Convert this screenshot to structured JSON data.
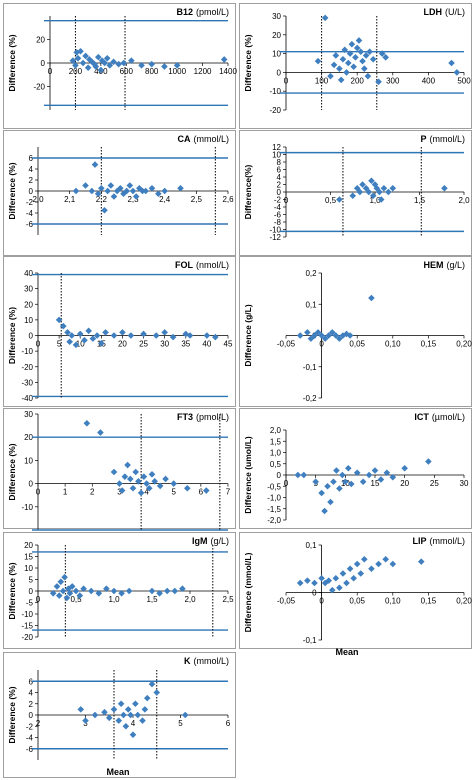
{
  "colors": {
    "marker": "#3F7FBF",
    "limit_line": "#2E75B6",
    "axis": "#000000",
    "frame": "#888888"
  },
  "xaxis_label": "Mean",
  "chart_data": [
    {
      "id": "b12",
      "type": "scatter",
      "title": "B12",
      "unit": "(pmol/L)",
      "ylabel": "Difference (%)",
      "xlim": [
        0,
        1400
      ],
      "ylim": [
        -40,
        40
      ],
      "xticks": [
        0,
        200,
        400,
        600,
        800,
        1000,
        1200,
        1400
      ],
      "yticks": [
        -20,
        0,
        20
      ],
      "hlines": [
        36,
        -36
      ],
      "vlines": [
        200,
        590
      ],
      "points": [
        [
          180,
          2
        ],
        [
          200,
          -2
        ],
        [
          210,
          9
        ],
        [
          220,
          4
        ],
        [
          240,
          10
        ],
        [
          260,
          0
        ],
        [
          280,
          6
        ],
        [
          300,
          -4
        ],
        [
          310,
          3
        ],
        [
          330,
          1
        ],
        [
          350,
          -1
        ],
        [
          360,
          -3
        ],
        [
          380,
          5
        ],
        [
          400,
          -6
        ],
        [
          410,
          2
        ],
        [
          430,
          0
        ],
        [
          450,
          4
        ],
        [
          470,
          -2
        ],
        [
          500,
          1
        ],
        [
          540,
          -1
        ],
        [
          580,
          0
        ],
        [
          640,
          2
        ],
        [
          720,
          -2
        ],
        [
          800,
          -1
        ],
        [
          900,
          -3
        ],
        [
          1000,
          -2
        ],
        [
          1370,
          3
        ]
      ]
    },
    {
      "id": "ldh",
      "type": "scatter",
      "title": "LDH",
      "unit": "(U/L)",
      "ylabel": "Difference (%)",
      "xlim": [
        0,
        500
      ],
      "ylim": [
        -20,
        30
      ],
      "xticks": [
        0,
        100,
        200,
        300,
        400,
        500
      ],
      "yticks": [
        -20,
        -10,
        0,
        10,
        20,
        30
      ],
      "hlines": [
        11,
        -11
      ],
      "vlines": [
        100,
        255
      ],
      "points": [
        [
          90,
          6
        ],
        [
          110,
          29
        ],
        [
          125,
          -2
        ],
        [
          135,
          4
        ],
        [
          140,
          9
        ],
        [
          150,
          2
        ],
        [
          155,
          -4
        ],
        [
          160,
          7
        ],
        [
          165,
          12
        ],
        [
          170,
          0
        ],
        [
          175,
          5
        ],
        [
          180,
          10
        ],
        [
          185,
          15
        ],
        [
          190,
          3
        ],
        [
          195,
          8
        ],
        [
          200,
          13
        ],
        [
          205,
          17
        ],
        [
          210,
          11
        ],
        [
          215,
          6
        ],
        [
          220,
          2
        ],
        [
          225,
          9
        ],
        [
          230,
          -2
        ],
        [
          235,
          11
        ],
        [
          245,
          7
        ],
        [
          260,
          -5
        ],
        [
          270,
          10
        ],
        [
          280,
          8
        ],
        [
          465,
          5
        ],
        [
          480,
          0
        ]
      ]
    },
    {
      "id": "ca",
      "type": "scatter",
      "title": "CA",
      "unit": "(mmol/L)",
      "ylabel": "Difference (%)",
      "xlim": [
        2.0,
        2.6
      ],
      "ylim": [
        -8,
        8
      ],
      "xticks": [
        2.0,
        2.1,
        2.2,
        2.3,
        2.4,
        2.5,
        2.6
      ],
      "yticks": [
        -6,
        -4,
        -2,
        0,
        2,
        4,
        6
      ],
      "hlines": [
        6,
        -6
      ],
      "vlines": [
        2.2,
        2.56
      ],
      "points": [
        [
          2.12,
          0
        ],
        [
          2.15,
          1
        ],
        [
          2.17,
          0
        ],
        [
          2.18,
          4.8
        ],
        [
          2.19,
          -0.5
        ],
        [
          2.2,
          0.5
        ],
        [
          2.21,
          -3.5
        ],
        [
          2.22,
          0
        ],
        [
          2.23,
          1
        ],
        [
          2.24,
          -1
        ],
        [
          2.25,
          0
        ],
        [
          2.26,
          0.5
        ],
        [
          2.27,
          -0.5
        ],
        [
          2.28,
          0
        ],
        [
          2.29,
          1
        ],
        [
          2.3,
          0
        ],
        [
          2.31,
          -1
        ],
        [
          2.32,
          0.5
        ],
        [
          2.33,
          0
        ],
        [
          2.34,
          0
        ],
        [
          2.36,
          0.5
        ],
        [
          2.38,
          -0.5
        ],
        [
          2.4,
          0
        ],
        [
          2.45,
          0.5
        ]
      ]
    },
    {
      "id": "p",
      "type": "scatter",
      "title": "P",
      "unit": "(mmol/L)",
      "ylabel": "Difference(%)",
      "xlim": [
        0,
        2.0
      ],
      "ylim": [
        -12,
        12
      ],
      "xticks": [
        0,
        0.5,
        1.0,
        1.5,
        2.0
      ],
      "yticks": [
        -12,
        -10,
        -8,
        -6,
        -4,
        -2,
        0,
        2,
        4,
        6,
        8,
        10,
        12
      ],
      "hlines": [
        10.5,
        -10.5
      ],
      "vlines": [
        0.64,
        1.52
      ],
      "points": [
        [
          0.6,
          -2
        ],
        [
          0.75,
          -1
        ],
        [
          0.8,
          1
        ],
        [
          0.83,
          0
        ],
        [
          0.86,
          2
        ],
        [
          0.9,
          1
        ],
        [
          0.93,
          0
        ],
        [
          0.96,
          3
        ],
        [
          0.98,
          -1
        ],
        [
          1.0,
          2
        ],
        [
          1.02,
          1
        ],
        [
          1.05,
          0
        ],
        [
          1.07,
          -2
        ],
        [
          1.1,
          1
        ],
        [
          1.15,
          0
        ],
        [
          1.2,
          1
        ],
        [
          1.78,
          1
        ]
      ]
    },
    {
      "id": "fol",
      "type": "scatter",
      "title": "FOL",
      "unit": "(nmol/L)",
      "ylabel": "Difference (%)",
      "xlim": [
        0,
        45
      ],
      "ylim": [
        -40,
        40
      ],
      "xticks": [
        0,
        5,
        10,
        15,
        20,
        25,
        30,
        35,
        40,
        45
      ],
      "yticks": [
        -40,
        -30,
        -20,
        -10,
        0,
        10,
        20,
        30,
        40
      ],
      "hlines": [
        39,
        -39
      ],
      "vlines": [
        5.5
      ],
      "points": [
        [
          5,
          10
        ],
        [
          6,
          6
        ],
        [
          7,
          2
        ],
        [
          7.5,
          -4
        ],
        [
          8,
          0
        ],
        [
          9,
          -6
        ],
        [
          10,
          1
        ],
        [
          11,
          -3
        ],
        [
          12,
          3
        ],
        [
          13,
          -2
        ],
        [
          14,
          0
        ],
        [
          15,
          -5
        ],
        [
          16,
          2
        ],
        [
          18,
          0
        ],
        [
          20,
          2
        ],
        [
          22,
          0
        ],
        [
          25,
          1
        ],
        [
          28,
          0
        ],
        [
          30,
          2
        ],
        [
          32,
          -1
        ],
        [
          35,
          1
        ],
        [
          36,
          0
        ],
        [
          40,
          0
        ],
        [
          42,
          -1
        ]
      ]
    },
    {
      "id": "hem",
      "type": "scatter",
      "title": "HEM",
      "unit": "(g/L)",
      "ylabel": "Difference (g/L)",
      "xlim": [
        -0.05,
        0.2
      ],
      "ylim": [
        -0.2,
        0.2
      ],
      "xticks": [
        -0.05,
        0,
        0.05,
        0.1,
        0.15,
        0.2
      ],
      "yticks": [
        -0.2,
        -0.1,
        0,
        0.1,
        0.2
      ],
      "hlines": [],
      "vlines": [],
      "points": [
        [
          -0.03,
          0
        ],
        [
          -0.02,
          0.01
        ],
        [
          -0.015,
          -0.01
        ],
        [
          -0.01,
          0
        ],
        [
          -0.005,
          0.01
        ],
        [
          0,
          0
        ],
        [
          0.005,
          -0.01
        ],
        [
          0.01,
          0
        ],
        [
          0.015,
          0.01
        ],
        [
          0.02,
          0
        ],
        [
          0.025,
          -0.01
        ],
        [
          0.03,
          0
        ],
        [
          0.035,
          0.005
        ],
        [
          0.04,
          0
        ],
        [
          0.07,
          0.12
        ]
      ]
    },
    {
      "id": "ft3",
      "type": "scatter",
      "title": "FT3",
      "unit": "(pmol/L)",
      "ylabel": "Difference (%)",
      "xlim": [
        0,
        7
      ],
      "ylim": [
        -20,
        30
      ],
      "xticks": [
        0,
        1,
        2,
        3,
        4,
        5,
        6,
        7
      ],
      "yticks": [
        -10,
        0,
        10,
        20,
        30
      ],
      "hlines": [
        20,
        -20
      ],
      "vlines": [
        3.8,
        6.7
      ],
      "points": [
        [
          1.8,
          26
        ],
        [
          2.3,
          22
        ],
        [
          2.8,
          5
        ],
        [
          3.0,
          0
        ],
        [
          3.1,
          -3
        ],
        [
          3.2,
          3
        ],
        [
          3.3,
          8
        ],
        [
          3.4,
          2
        ],
        [
          3.5,
          -2
        ],
        [
          3.6,
          5
        ],
        [
          3.7,
          1
        ],
        [
          3.8,
          -4
        ],
        [
          3.9,
          3
        ],
        [
          4.0,
          0
        ],
        [
          4.1,
          -2
        ],
        [
          4.2,
          4
        ],
        [
          4.3,
          1
        ],
        [
          4.5,
          -1
        ],
        [
          4.7,
          2
        ],
        [
          5.0,
          0
        ],
        [
          5.5,
          -2
        ],
        [
          6.2,
          -3
        ]
      ]
    },
    {
      "id": "ict",
      "type": "scatter",
      "title": "ICT",
      "unit": "(µmol/L)",
      "ylabel": "Difference (umol/L)",
      "xlim": [
        0,
        30
      ],
      "ylim": [
        -2,
        2
      ],
      "xticks": [
        0,
        5,
        10,
        15,
        20,
        25,
        30
      ],
      "yticks": [
        -2,
        -1.5,
        -1,
        -0.5,
        0,
        0.5,
        1,
        1.5,
        2
      ],
      "hlines": [],
      "vlines": [],
      "points": [
        [
          2,
          0
        ],
        [
          3,
          0
        ],
        [
          5,
          -0.3
        ],
        [
          6,
          -0.8
        ],
        [
          6.5,
          -1.6
        ],
        [
          7,
          -0.5
        ],
        [
          7.5,
          -1.2
        ],
        [
          8,
          -0.3
        ],
        [
          8.5,
          0.2
        ],
        [
          9,
          -0.6
        ],
        [
          9.5,
          0
        ],
        [
          10,
          -0.3
        ],
        [
          10.5,
          0.3
        ],
        [
          11,
          -0.4
        ],
        [
          12,
          0.1
        ],
        [
          13,
          -0.3
        ],
        [
          14,
          0
        ],
        [
          15,
          0.2
        ],
        [
          16,
          -0.2
        ],
        [
          17,
          0.1
        ],
        [
          18,
          -0.1
        ],
        [
          20,
          0.3
        ],
        [
          24,
          0.6
        ]
      ]
    },
    {
      "id": "igm",
      "type": "scatter",
      "title": "IgM",
      "unit": "(g/L)",
      "ylabel": "Difference (%)",
      "xlim": [
        0,
        2.5
      ],
      "ylim": [
        -20,
        20
      ],
      "xticks": [
        0,
        0.5,
        1.0,
        1.5,
        2.0,
        2.5
      ],
      "yticks": [
        -20,
        -15,
        -10,
        -5,
        0,
        5,
        10,
        15,
        20
      ],
      "hlines": [
        17,
        -17
      ],
      "vlines": [
        0.36,
        2.3
      ],
      "points": [
        [
          0.2,
          -1
        ],
        [
          0.25,
          2
        ],
        [
          0.28,
          -2
        ],
        [
          0.3,
          4
        ],
        [
          0.33,
          0
        ],
        [
          0.35,
          6
        ],
        [
          0.38,
          -3
        ],
        [
          0.4,
          1
        ],
        [
          0.42,
          -1
        ],
        [
          0.45,
          2
        ],
        [
          0.5,
          0
        ],
        [
          0.55,
          -2
        ],
        [
          0.6,
          1
        ],
        [
          0.7,
          0
        ],
        [
          0.8,
          -1
        ],
        [
          0.9,
          1
        ],
        [
          1.0,
          0
        ],
        [
          1.1,
          -1
        ],
        [
          1.2,
          0
        ],
        [
          1.5,
          0
        ],
        [
          1.6,
          -1
        ],
        [
          1.7,
          0
        ],
        [
          1.8,
          0
        ],
        [
          1.9,
          1
        ]
      ]
    },
    {
      "id": "lip",
      "type": "scatter",
      "title": "LIP",
      "unit": "(mmol/L)",
      "ylabel": "Difference (mmol/L)",
      "xlim": [
        -0.05,
        0.2
      ],
      "ylim": [
        -0.1,
        0.1
      ],
      "xticks": [
        -0.05,
        0,
        0.05,
        0.1,
        0.15,
        0.2
      ],
      "yticks": [
        -0.1,
        0,
        0.1
      ],
      "hlines": [],
      "vlines": [],
      "points": [
        [
          -0.03,
          0.02
        ],
        [
          -0.02,
          0.025
        ],
        [
          -0.01,
          0.02
        ],
        [
          0,
          0.03
        ],
        [
          0.005,
          0.02
        ],
        [
          0.01,
          0.025
        ],
        [
          0.015,
          0.005
        ],
        [
          0.02,
          0.03
        ],
        [
          0.025,
          0.01
        ],
        [
          0.03,
          0.04
        ],
        [
          0.035,
          0.02
        ],
        [
          0.04,
          0.05
        ],
        [
          0.045,
          0.03
        ],
        [
          0.05,
          0.06
        ],
        [
          0.055,
          0.04
        ],
        [
          0.06,
          0.07
        ],
        [
          0.07,
          0.05
        ],
        [
          0.08,
          0.06
        ],
        [
          0.09,
          0.07
        ],
        [
          0.1,
          0.06
        ],
        [
          0.14,
          0.065
        ]
      ]
    },
    {
      "id": "k",
      "type": "scatter",
      "title": "K",
      "unit": "(mmol/L)",
      "ylabel": "Difference (%)",
      "xlim": [
        2.0,
        6.0
      ],
      "ylim": [
        -8,
        8
      ],
      "xticks": [
        2.0,
        3.0,
        4.0,
        5.0,
        6.0
      ],
      "yticks": [
        -6,
        -4,
        -2,
        0,
        2,
        4,
        6
      ],
      "hlines": [
        6,
        -6
      ],
      "vlines": [
        3.6,
        4.5
      ],
      "points": [
        [
          2.9,
          1
        ],
        [
          3.0,
          -1
        ],
        [
          3.2,
          0
        ],
        [
          3.4,
          0.5
        ],
        [
          3.5,
          -0.5
        ],
        [
          3.6,
          1
        ],
        [
          3.7,
          -1
        ],
        [
          3.75,
          2
        ],
        [
          3.8,
          0
        ],
        [
          3.85,
          -2
        ],
        [
          3.9,
          1
        ],
        [
          3.95,
          0
        ],
        [
          4.0,
          -3.5
        ],
        [
          4.05,
          2
        ],
        [
          4.1,
          0
        ],
        [
          4.2,
          -1
        ],
        [
          4.25,
          1
        ],
        [
          4.3,
          3
        ],
        [
          4.4,
          5.5
        ],
        [
          4.5,
          4
        ],
        [
          5.1,
          0
        ]
      ]
    }
  ]
}
